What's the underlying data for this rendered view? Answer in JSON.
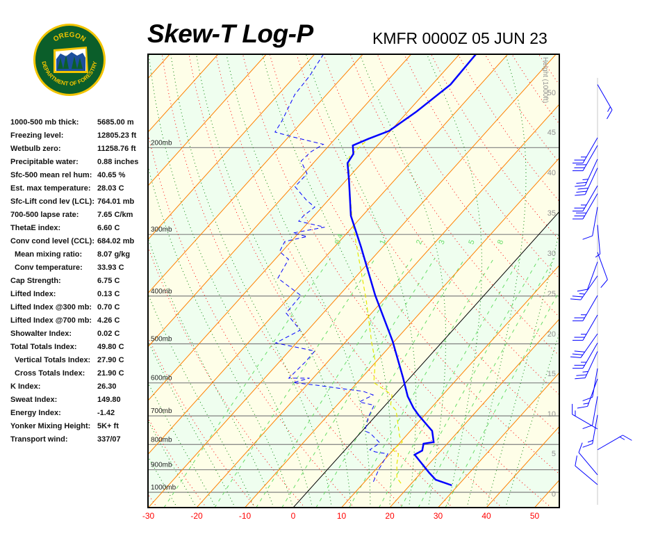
{
  "header": {
    "title": "Skew-T Log-P",
    "station_time": "KMFR 0000Z 05 JUN 23"
  },
  "logo": {
    "top_text": "OREGON",
    "bottom_text": "DEPARTMENT OF FORESTRY"
  },
  "stats": [
    {
      "label": "1000-500 mb thick:",
      "value": "5685.00 m"
    },
    {
      "label": "Freezing level:",
      "value": "12805.23 ft"
    },
    {
      "label": "Wetbulb zero:",
      "value": "11258.76 ft"
    },
    {
      "label": "Precipitable water:",
      "value": "0.88 inches"
    },
    {
      "label": "Sfc-500 mean rel hum:",
      "value": "40.65 %"
    },
    {
      "label": "Est. max temperature:",
      "value": "28.03 C"
    },
    {
      "label": "Sfc-Lift cond lev (LCL):",
      "value": "764.01 mb"
    },
    {
      "label": "700-500 lapse rate:",
      "value": "7.65 C/km"
    },
    {
      "label": "ThetaE index:",
      "value": "6.60 C"
    },
    {
      "label": "Conv cond level (CCL):",
      "value": "684.02 mb"
    },
    {
      "label": "Mean mixing ratio:",
      "value": "8.07 g/kg",
      "indent": true
    },
    {
      "label": "Conv temperature:",
      "value": "33.93 C",
      "indent": true
    },
    {
      "label": "Cap Strength:",
      "value": "6.75 C"
    },
    {
      "label": "Lifted Index:",
      "value": "0.13 C"
    },
    {
      "label": "Lifted Index @300 mb:",
      "value": "0.70 C"
    },
    {
      "label": "Lifted Index @700 mb:",
      "value": "4.26 C"
    },
    {
      "label": "Showalter Index:",
      "value": "0.02 C"
    },
    {
      "label": "Total Totals Index:",
      "value": "49.80 C"
    },
    {
      "label": "Vertical Totals Index:",
      "value": "27.90 C",
      "indent": true
    },
    {
      "label": "Cross Totals Index:",
      "value": "21.90 C",
      "indent": true
    },
    {
      "label": "K Index:",
      "value": "26.30"
    },
    {
      "label": "Sweat Index:",
      "value": "149.80"
    },
    {
      "label": "Energy Index:",
      "value": "-1.42"
    },
    {
      "label": "Yonker Mixing Height:",
      "value": "5K+ ft"
    },
    {
      "label": "Transport wind:",
      "value": "337/07"
    }
  ],
  "chart_data": {
    "type": "skew-t log-p",
    "x_unit": "C",
    "y_scale": "log pressure (mb)",
    "xlim": [
      -30,
      55
    ],
    "plim": [
      1067,
      129
    ],
    "x_ticks": [
      "-30",
      "-20",
      "-10",
      "0",
      "10",
      "20",
      "30",
      "40",
      "50"
    ],
    "x_tick_values": [
      -30,
      -20,
      -10,
      0,
      10,
      20,
      30,
      40,
      50
    ],
    "pressure_levels": [
      {
        "p": 200,
        "label": "200mb"
      },
      {
        "p": 300,
        "label": "300mb"
      },
      {
        "p": 400,
        "label": "400mb"
      },
      {
        "p": 500,
        "label": "500mb"
      },
      {
        "p": 600,
        "label": "600mb"
      },
      {
        "p": 700,
        "label": "700mb"
      },
      {
        "p": 800,
        "label": "800mb"
      },
      {
        "p": 900,
        "label": "900mb"
      },
      {
        "p": 1000,
        "label": "1000mb"
      }
    ],
    "height_axis": {
      "label": "Height (1000ft)",
      "ticks": [
        "0",
        "5",
        "10",
        "15",
        "20",
        "25",
        "30",
        "35",
        "40",
        "45",
        "50"
      ]
    },
    "mixing_ratio_labels": [
      "0.4",
      "1",
      "2",
      "3",
      "5",
      "8"
    ],
    "mixing_ratio_lines": [
      0.4,
      1,
      2,
      3,
      5,
      8,
      12,
      16,
      20,
      28
    ],
    "colors": {
      "temperature": "#0000ff",
      "dewpoint": "#0000ff",
      "parcel": "#e8e800",
      "isotherm": "#ff8000",
      "zero_isotherm": "#000000",
      "dry_adiabat": "#ff0000",
      "moist_adiabat": "#008000",
      "mixing_ratio": "#66dd66",
      "band_a": "#effeef",
      "band_b": "#fefee8",
      "axis_labels": "#ff0000"
    },
    "temperature": [
      [
        968,
        28.7
      ],
      [
        943,
        24.3
      ],
      [
        913,
        21.7
      ],
      [
        839,
        15.3
      ],
      [
        823,
        16.1
      ],
      [
        797,
        15.1
      ],
      [
        791,
        16.9
      ],
      [
        751,
        14.5
      ],
      [
        732,
        12.5
      ],
      [
        697,
        8.7
      ],
      [
        675,
        6.4
      ],
      [
        639,
        3.0
      ],
      [
        599,
        -0.3
      ],
      [
        585,
        -1.5
      ],
      [
        493,
        -10.5
      ],
      [
        399,
        -22.5
      ],
      [
        318,
        -34.5
      ],
      [
        275,
        -42.4
      ],
      [
        233,
        -49.4
      ],
      [
        215,
        -52.9
      ],
      [
        206,
        -53.4
      ],
      [
        198,
        -55.1
      ],
      [
        192,
        -53.1
      ],
      [
        185,
        -50.3
      ],
      [
        169,
        -48.2
      ],
      [
        149,
        -46.2
      ],
      [
        129,
        -46.6
      ]
    ],
    "dewpoint": [
      [
        952,
        11.8
      ],
      [
        898,
        10.6
      ],
      [
        836,
        9.6
      ],
      [
        828,
        6.6
      ],
      [
        820,
        5.1
      ],
      [
        794,
        5.9
      ],
      [
        759,
        2.1
      ],
      [
        751,
        0.6
      ],
      [
        704,
        -1.3
      ],
      [
        666,
        -2.3
      ],
      [
        656,
        -6.0
      ],
      [
        635,
        -4.4
      ],
      [
        624,
        -7.2
      ],
      [
        618,
        -11.1
      ],
      [
        607,
        -17.7
      ],
      [
        599,
        -23.3
      ],
      [
        587,
        -20.7
      ],
      [
        587,
        -25.0
      ],
      [
        543,
        -24.6
      ],
      [
        517,
        -24.7
      ],
      [
        498,
        -34.3
      ],
      [
        469,
        -31.6
      ],
      [
        433,
        -37.7
      ],
      [
        399,
        -37.9
      ],
      [
        368,
        -45.9
      ],
      [
        337,
        -47.2
      ],
      [
        325,
        -50.5
      ],
      [
        310,
        -51.3
      ],
      [
        303,
        -47.6
      ],
      [
        298,
        -51.2
      ],
      [
        290,
        -45.7
      ],
      [
        282,
        -52.2
      ],
      [
        275,
        -52.2
      ],
      [
        264,
        -51.5
      ],
      [
        256,
        -54.4
      ],
      [
        240,
        -59.4
      ],
      [
        226,
        -59.3
      ],
      [
        213,
        -62.9
      ],
      [
        204,
        -62.6
      ],
      [
        197,
        -61.4
      ],
      [
        190,
        -69.4
      ],
      [
        186,
        -73.7
      ],
      [
        177,
        -74.3
      ],
      [
        156,
        -76.6
      ],
      [
        143,
        -77.0
      ],
      [
        129,
        -78.2
      ]
    ],
    "parcel": [
      [
        959,
        17.8
      ],
      [
        934,
        15.9
      ],
      [
        875,
        13.3
      ],
      [
        836,
        11.8
      ],
      [
        820,
        9.8
      ],
      [
        791,
        10.4
      ],
      [
        769,
        8.7
      ],
      [
        682,
        3.2
      ],
      [
        664,
        1.0
      ],
      [
        635,
        -0.5
      ],
      [
        618,
        -3.3
      ],
      [
        599,
        -6.6
      ],
      [
        543,
        -10.2
      ],
      [
        498,
        -14.4
      ],
      [
        407,
        -23.6
      ],
      [
        328,
        -33.9
      ],
      [
        282,
        -41.1
      ],
      [
        234,
        -49.2
      ],
      [
        209,
        -53.7
      ],
      [
        192,
        -53.1
      ],
      [
        185,
        -50.3
      ],
      [
        169,
        -48.2
      ],
      [
        149,
        -46.2
      ],
      [
        129,
        -46.6
      ]
    ],
    "winds": [
      [
        149,
        150,
        15
      ],
      [
        191,
        210,
        25
      ],
      [
        198,
        210,
        30
      ],
      [
        211,
        205,
        25
      ],
      [
        220,
        205,
        30
      ],
      [
        239,
        210,
        25
      ],
      [
        248,
        210,
        30
      ],
      [
        264,
        190,
        10
      ],
      [
        287,
        175,
        5
      ],
      [
        326,
        160,
        10
      ],
      [
        341,
        200,
        10
      ],
      [
        364,
        215,
        25
      ],
      [
        399,
        210,
        25
      ],
      [
        437,
        210,
        25
      ],
      [
        477,
        215,
        30
      ],
      [
        498,
        210,
        25
      ],
      [
        518,
        205,
        25
      ],
      [
        561,
        190,
        10
      ],
      [
        589,
        200,
        15
      ],
      [
        639,
        190,
        10
      ],
      [
        697,
        190,
        15
      ],
      [
        744,
        300,
        15
      ],
      [
        820,
        60,
        15
      ],
      [
        922,
        320,
        10
      ],
      [
        965,
        310,
        10
      ]
    ]
  }
}
